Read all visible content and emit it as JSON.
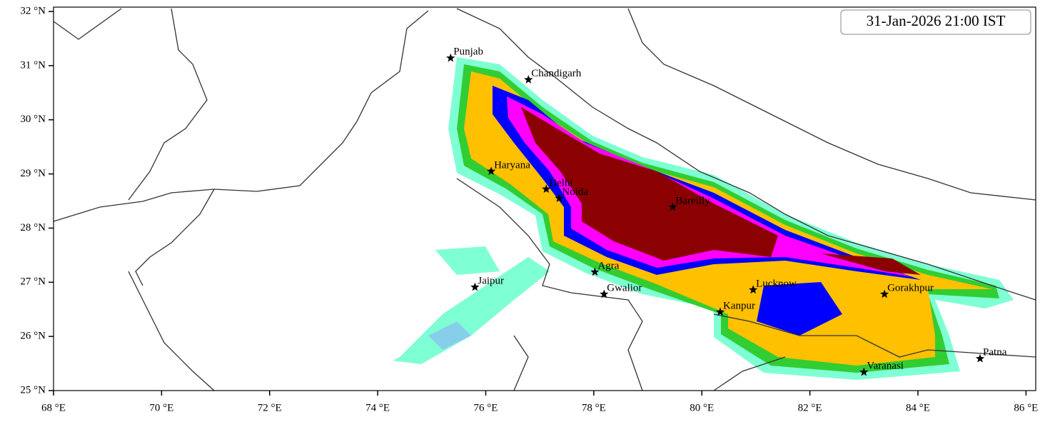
{
  "map": {
    "title": "31-Jan-2026 21:00 IST",
    "xlim": [
      68,
      86.18
    ],
    "ylim": [
      25,
      32.08
    ],
    "xticks": [
      {
        "value": 68,
        "label": "68 °E"
      },
      {
        "value": 70,
        "label": "70 °E"
      },
      {
        "value": 72,
        "label": "72 °E"
      },
      {
        "value": 74,
        "label": "74 °E"
      },
      {
        "value": 76,
        "label": "76 °E"
      },
      {
        "value": 78,
        "label": "78 °E"
      },
      {
        "value": 80,
        "label": "80 °E"
      },
      {
        "value": 82,
        "label": "82 °E"
      },
      {
        "value": 84,
        "label": "84 °E"
      },
      {
        "value": 86,
        "label": "86 °E"
      }
    ],
    "yticks": [
      {
        "value": 25,
        "label": "25 °N"
      },
      {
        "value": 26,
        "label": "26 °N"
      },
      {
        "value": 27,
        "label": "27 °N"
      },
      {
        "value": 28,
        "label": "28 °N"
      },
      {
        "value": 29,
        "label": "29 °N"
      },
      {
        "value": 30,
        "label": "30 °N"
      },
      {
        "value": 31,
        "label": "31 °N"
      },
      {
        "value": 32,
        "label": "32 °N"
      }
    ],
    "cities": [
      {
        "name": "Punjab",
        "lon": 75.35,
        "lat": 31.14
      },
      {
        "name": "Chandigarh",
        "lon": 76.79,
        "lat": 30.74
      },
      {
        "name": "Haryana",
        "lon": 76.1,
        "lat": 29.05
      },
      {
        "name": "Delhi",
        "lon": 77.12,
        "lat": 28.72
      },
      {
        "name": "Noida",
        "lon": 77.36,
        "lat": 28.55
      },
      {
        "name": "Bareilly",
        "lon": 79.46,
        "lat": 28.39
      },
      {
        "name": "Agra",
        "lon": 78.02,
        "lat": 27.19
      },
      {
        "name": "Jaipur",
        "lon": 75.8,
        "lat": 26.91
      },
      {
        "name": "Gwalior",
        "lon": 78.19,
        "lat": 26.78
      },
      {
        "name": "Lucknow",
        "lon": 80.95,
        "lat": 26.86
      },
      {
        "name": "Gorakhpur",
        "lon": 83.38,
        "lat": 26.78
      },
      {
        "name": "Kanpur",
        "lon": 80.34,
        "lat": 26.45
      },
      {
        "name": "Varanasi",
        "lon": 83.0,
        "lat": 25.34
      },
      {
        "name": "Patna",
        "lon": 85.15,
        "lat": 25.59
      }
    ]
  }
}
